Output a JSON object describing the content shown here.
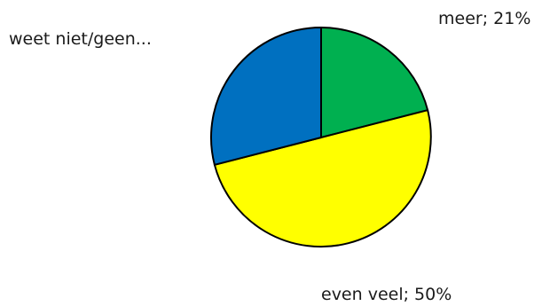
{
  "chart_data": {
    "type": "pie",
    "categories": [
      "meer",
      "even veel",
      "weet niet/geen..."
    ],
    "values": [
      21,
      50,
      29
    ],
    "labels": [
      "meer; 21%",
      "even veel; 50%",
      "weet niet/geen..."
    ],
    "colors": [
      "#00b050",
      "#ffff00",
      "#0070c0"
    ],
    "legend": "none",
    "start": "top",
    "direction": "clockwise"
  }
}
